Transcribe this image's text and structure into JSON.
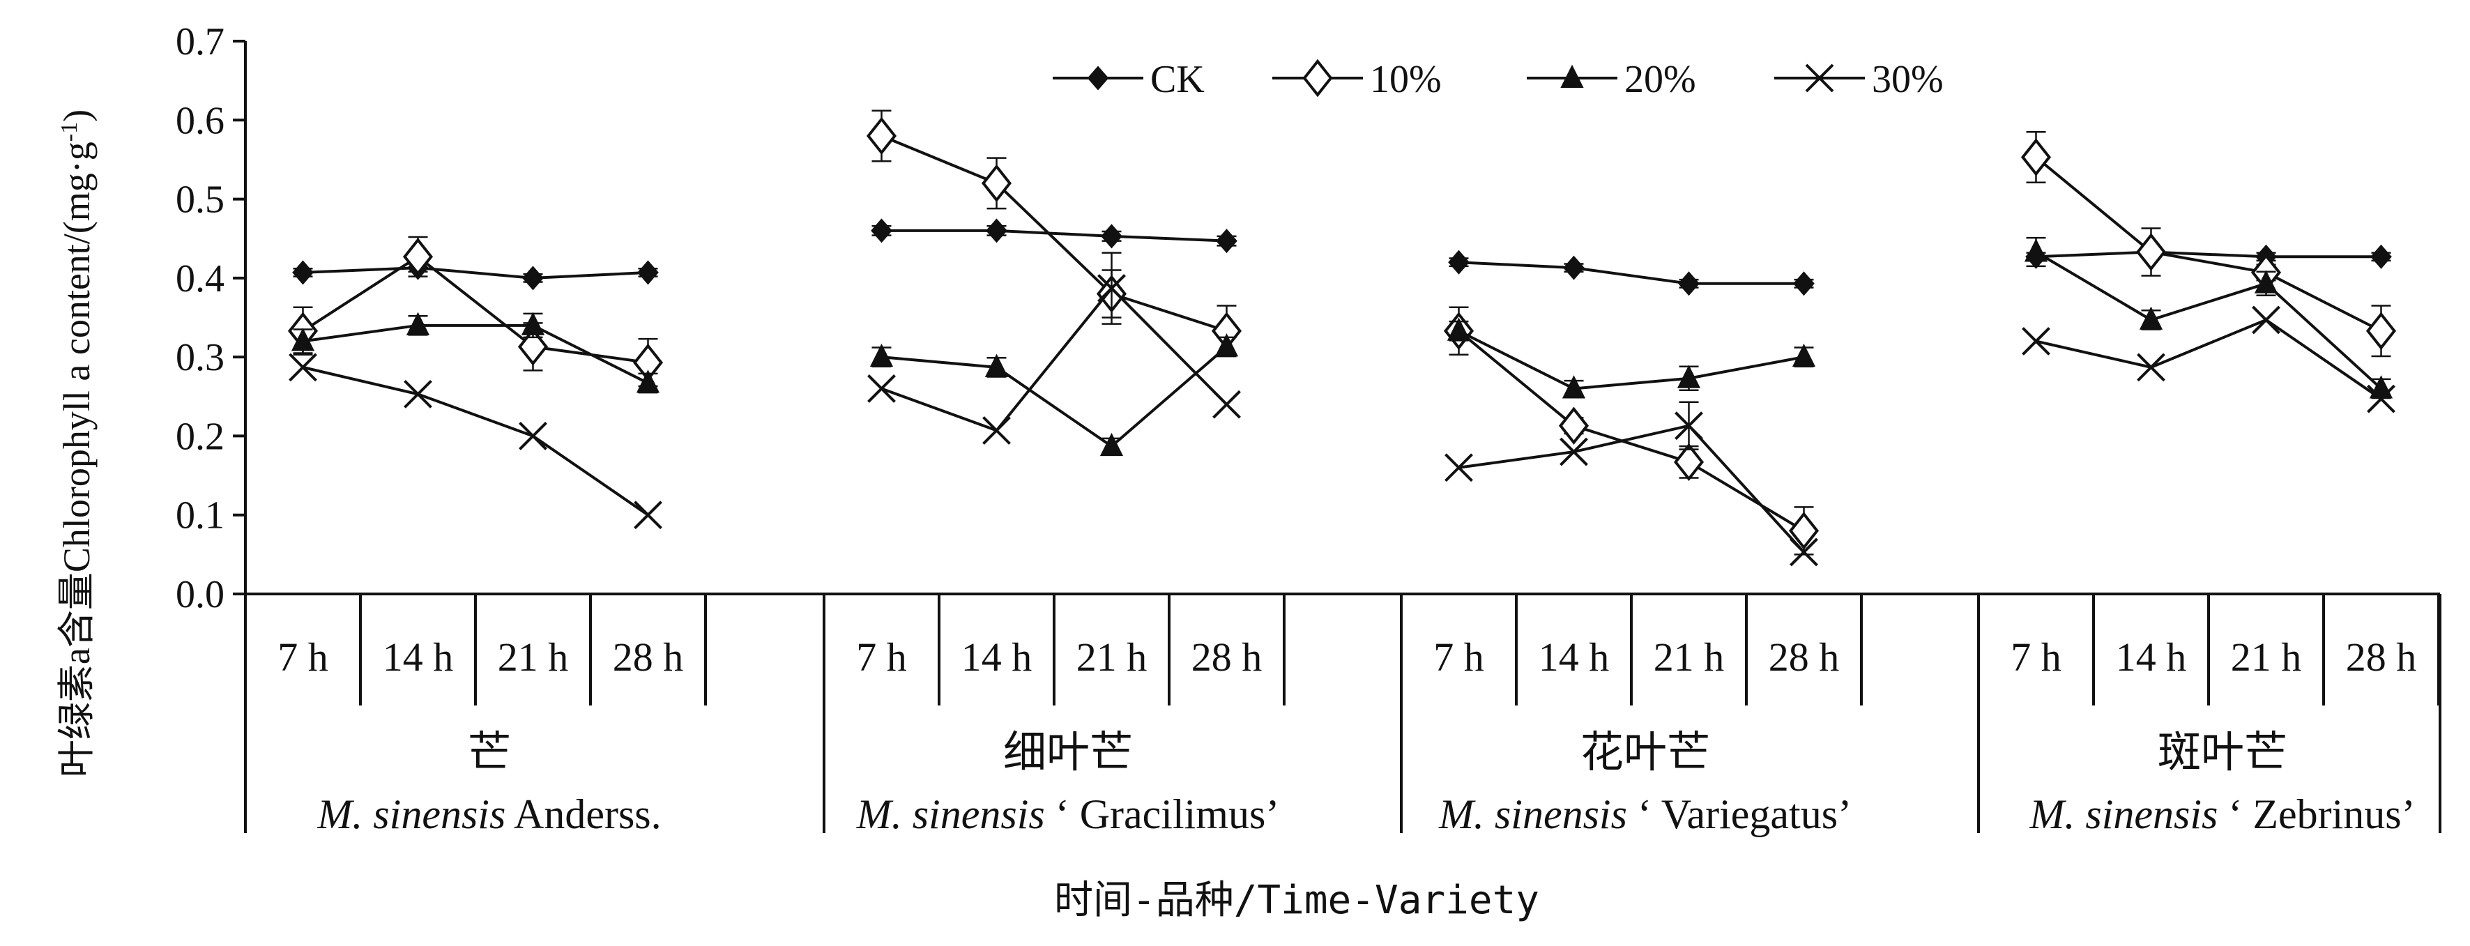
{
  "chart_data": {
    "type": "line",
    "ylabel": "叶绿素a含量Chlorophyll a content/(mg·g",
    "ylabel_sup": "-1",
    "ylabel_close": ")",
    "xlabel": "时间-品种/Time-Variety",
    "ylim": [
      0,
      0.7
    ],
    "yticks": [
      "0.0",
      "0.1",
      "0.2",
      "0.3",
      "0.4",
      "0.5",
      "0.6",
      "0.7"
    ],
    "times": [
      "7 h",
      "14 h",
      "21 h",
      "28 h"
    ],
    "groups": [
      {
        "name_cn": "芒",
        "name_en_italic": "M. sinensis",
        "name_en_rest": " Anderss."
      },
      {
        "name_cn": "细叶芒",
        "name_en_italic": "M. sinensis",
        "name_en_rest": " ‘ Gracilimus’"
      },
      {
        "name_cn": "花叶芒",
        "name_en_italic": "M. sinensis",
        "name_en_rest": " ‘ Variegatus’"
      },
      {
        "name_cn": "斑叶芒",
        "name_en_italic": "M. sinensis",
        "name_en_rest": " ‘ Zebrinus’"
      }
    ],
    "legend_position": "top",
    "series": [
      {
        "name": "CK",
        "marker": "diamond-filled",
        "values": [
          [
            0.407,
            0.413,
            0.4,
            0.407
          ],
          [
            0.46,
            0.46,
            0.453,
            0.447
          ],
          [
            0.42,
            0.413,
            0.393,
            0.393
          ],
          [
            0.427,
            0.433,
            0.427,
            0.427
          ]
        ],
        "errors": [
          [
            0.005,
            0.005,
            0.005,
            0.005
          ],
          [
            0.006,
            0.006,
            0.006,
            0.006
          ],
          [
            0.005,
            0.005,
            0.005,
            0.005
          ],
          [
            0.005,
            0.005,
            0.005,
            0.005
          ]
        ]
      },
      {
        "name": "10%",
        "marker": "diamond-open",
        "values": [
          [
            0.333,
            0.427,
            0.313,
            0.293
          ],
          [
            0.58,
            0.52,
            0.38,
            0.333
          ],
          [
            0.333,
            0.213,
            0.167,
            0.08
          ],
          [
            0.553,
            0.433,
            0.407,
            0.333
          ]
        ],
        "errors": [
          [
            0.03,
            0.025,
            0.03,
            0.03
          ],
          [
            0.032,
            0.032,
            0.03,
            0.032
          ],
          [
            0.03,
            0.01,
            0.02,
            0.03
          ],
          [
            0.032,
            0.03,
            0.01,
            0.032
          ]
        ]
      },
      {
        "name": "20%",
        "marker": "triangle-filled",
        "values": [
          [
            0.32,
            0.34,
            0.34,
            0.267
          ],
          [
            0.3,
            0.287,
            0.187,
            0.313
          ],
          [
            0.333,
            0.26,
            0.273,
            0.3
          ],
          [
            0.433,
            0.347,
            0.393,
            0.26
          ]
        ],
        "errors": [
          [
            0.015,
            0.012,
            0.015,
            0.012
          ],
          [
            0.012,
            0.012,
            0.01,
            0.012
          ],
          [
            0.012,
            0.01,
            0.015,
            0.012
          ],
          [
            0.018,
            0.012,
            0.015,
            0.012
          ]
        ]
      },
      {
        "name": "30%",
        "marker": "x",
        "values": [
          [
            0.287,
            0.253,
            0.2,
            0.1
          ],
          [
            0.26,
            0.207,
            0.387,
            0.24
          ],
          [
            0.16,
            0.18,
            0.213,
            0.053
          ],
          [
            0.32,
            0.287,
            0.347,
            0.247
          ]
        ],
        "errors": [
          [
            0,
            0,
            0,
            0
          ],
          [
            0,
            0,
            0.045,
            0
          ],
          [
            0,
            0,
            0.03,
            0
          ],
          [
            0,
            0,
            0,
            0
          ]
        ]
      }
    ]
  }
}
